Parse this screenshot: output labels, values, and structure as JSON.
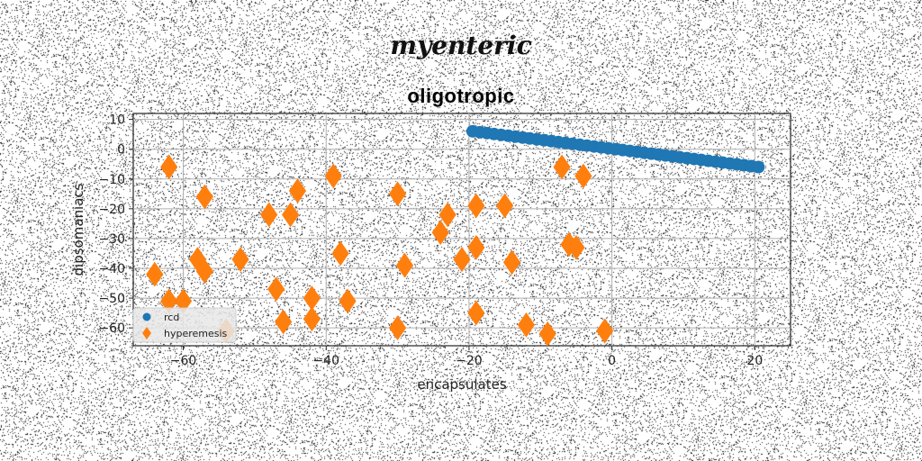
{
  "figure": {
    "suptitle": "myenteric"
  },
  "chart_data": {
    "type": "scatter",
    "title": "oligotropic",
    "xlabel": "encapsulates",
    "ylabel": "dipsomaniacs",
    "xlim": [
      -67,
      25
    ],
    "ylim": [
      -66,
      12
    ],
    "xticks": [
      -60,
      -40,
      -20,
      0,
      20
    ],
    "yticks": [
      10,
      0,
      -10,
      -20,
      -30,
      -40,
      -50,
      -60
    ],
    "grid": true,
    "legend_position": "lower-left",
    "series": [
      {
        "name": "rcd",
        "marker": "circle",
        "color": "#1f77b4",
        "x": [
          -19.5,
          -18.5,
          -17.5,
          -16.5,
          -15.5,
          -14.5,
          -13.5,
          -12.5,
          -11.5,
          -10.5,
          -9.5,
          -8.5,
          -7.5,
          -6.5,
          -5.5,
          -4.5,
          -3.5,
          -2.5,
          -1.5,
          -0.5,
          0.5,
          1.5,
          2.5,
          3.5,
          4.5,
          5.5,
          6.5,
          7.5,
          8.5,
          9.5,
          10.5,
          11.5,
          12.5,
          13.5,
          14.5,
          15.5,
          16.5,
          17.5,
          18.5,
          19.5,
          20.5
        ],
        "y": [
          6.0,
          5.7,
          5.4,
          5.1,
          4.8,
          4.5,
          4.2,
          3.9,
          3.6,
          3.3,
          3.0,
          2.7,
          2.4,
          2.1,
          1.8,
          1.5,
          1.2,
          0.9,
          0.6,
          0.3,
          0.0,
          -0.3,
          -0.6,
          -0.9,
          -1.2,
          -1.5,
          -1.8,
          -2.1,
          -2.4,
          -2.7,
          -3.0,
          -3.3,
          -3.6,
          -3.9,
          -4.2,
          -4.5,
          -4.8,
          -5.1,
          -5.4,
          -5.7,
          -6.0
        ]
      },
      {
        "name": "hyperemesis",
        "marker": "thin_diamond",
        "color": "#ff7f0e",
        "x": [
          -62,
          -57,
          -64,
          -62,
          -60,
          -58,
          -57,
          -52,
          -54,
          -48,
          -47,
          -46,
          -45,
          -44,
          -42,
          -42,
          -39,
          -38,
          -37,
          -30,
          -29,
          -30,
          -24,
          -23,
          -21,
          -19,
          -19,
          -19,
          -15,
          -14,
          -12,
          -9,
          -7,
          -6,
          -5,
          -4,
          -1
        ],
        "y": [
          -6,
          -16,
          -42,
          -51,
          -51,
          -37,
          -41,
          -37,
          -61,
          -22,
          -47,
          -58,
          -22,
          -14,
          -57,
          -50,
          -9,
          -35,
          -51,
          -15,
          -39,
          -60,
          -28,
          -22,
          -37,
          -19,
          -33,
          -55,
          -19,
          -38,
          -59,
          -62,
          -6,
          -32,
          -33,
          -9,
          -61
        ]
      }
    ]
  }
}
